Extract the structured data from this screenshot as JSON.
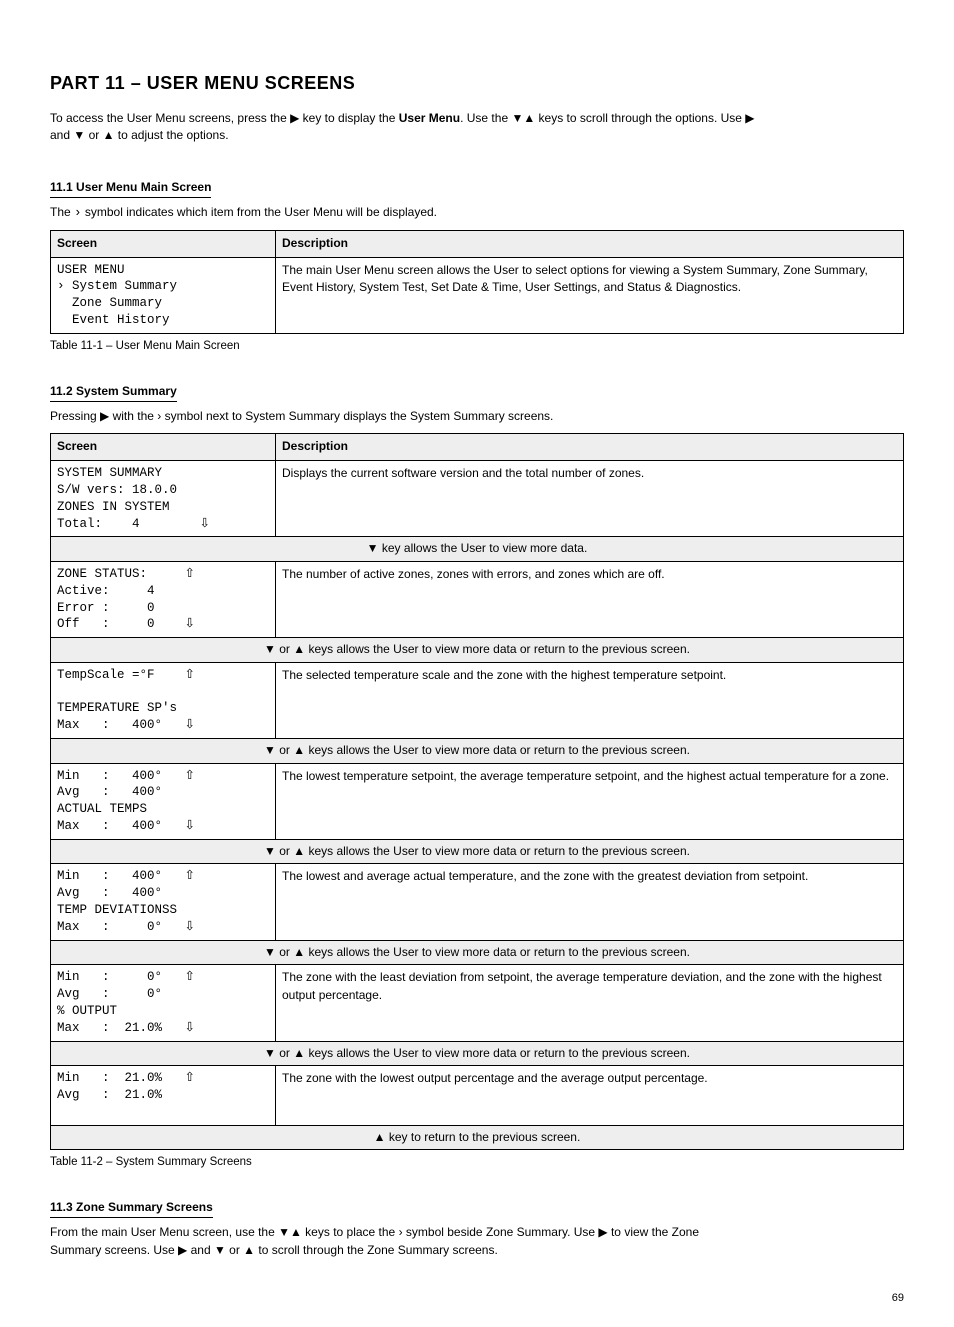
{
  "title": "PART 11 – USER MENU SCREENS",
  "intro_line1_a": "To access the User Menu screens, press the ",
  "intro_line1_b": " key to display the ",
  "intro_line1_c": ". Use the ▼▲ keys to scroll through the options. Use ▶",
  "intro_user_menu": "User Menu",
  "intro_line2": "and ▼ or ▲ to adjust the options.",
  "sec1_head": "11.1 User Menu Main Screen",
  "sec1_desc_a": "The ",
  "sec1_desc_b": " symbol indicates which item from the User Menu will be displayed.",
  "sym_chevron": "›",
  "table1_header_screen": "Screen",
  "table1_header_desc": "Description",
  "table1_r1_screen": "USER MENU\n› System Summary\n  Zone Summary\n  Event History",
  "table1_r1_desc": "The main User Menu screen allows the User to select options for viewing a System Summary, Zone Summary, Event History, System Test, Set Date & Time, User Settings, and Status & Diagnostics.",
  "table1_caption": "Table 11-1 – User Menu Main Screen",
  "sec2_head": "11.2 System Summary",
  "sec2_desc": "Pressing ▶ with the › symbol next to System Summary displays the System Summary screens.",
  "table2_header_screen": "Screen",
  "table2_header_desc": "Description",
  "t2_r1_screen": "SYSTEM SUMMARY\nS/W vers: 18.0.0\nZONES IN SYSTEM\nTotal:    4        ⇩",
  "t2_r1_desc": "Displays the current software version and the total number of zones.",
  "t2_b1": "▼ key allows the User to view more data.",
  "t2_r2_screen": "ZONE STATUS:     ⇧\nActive:     4\nError :     0\nOff   :     0    ⇩",
  "t2_r2_desc": "The number of active zones, zones with errors, and zones which are off.",
  "t2_b2": "▼ or ▲ keys allows the User to view more data or return to the previous screen.",
  "t2_r3_screen": "TempScale =°F    ⇧\n\nTEMPERATURE SP's\nMax   :   400°   ⇩",
  "t2_r3_desc": "The selected temperature scale and the zone with the highest temperature setpoint.",
  "t2_r4_screen": "Min   :   400°   ⇧\nAvg   :   400°\nACTUAL TEMPS\nMax   :   400°   ⇩",
  "t2_r4_desc": "The lowest temperature setpoint, the average temperature setpoint, and the highest actual temperature for a zone.",
  "t2_r5_screen": "Min   :   400°   ⇧\nAvg   :   400°\nTEMP DEVIATIONSS\nMax   :     0°   ⇩",
  "t2_r5_desc": "The lowest and average actual temperature, and the zone with the greatest deviation from setpoint.",
  "t2_r6_screen": "Min   :     0°   ⇧\nAvg   :     0°\n% OUTPUT\nMax   :  21.0%   ⇩",
  "t2_r6_desc": "The zone with the least deviation from setpoint, the average temperature deviation, and the zone with the highest output percentage.",
  "t2_r7_screen": "Min   :  21.0%   ⇧\nAvg   :  21.0%\n\n",
  "t2_r7_desc": "The zone with the lowest output percentage and the average output percentage.",
  "t2_b7": "▲ key to return to the previous screen.",
  "table2_caption": "Table 11-2 – System Summary Screens",
  "sec3_head": "11.3 Zone Summary Screens",
  "sec3_line1": "From the main User Menu screen, use the ▼▲ keys to place the › symbol beside Zone Summary. Use ▶ to view the Zone",
  "sec3_line2": "Summary screens. Use ▶ and ▼ or ▲ to scroll through the Zone Summary screens.",
  "page_number": "69"
}
